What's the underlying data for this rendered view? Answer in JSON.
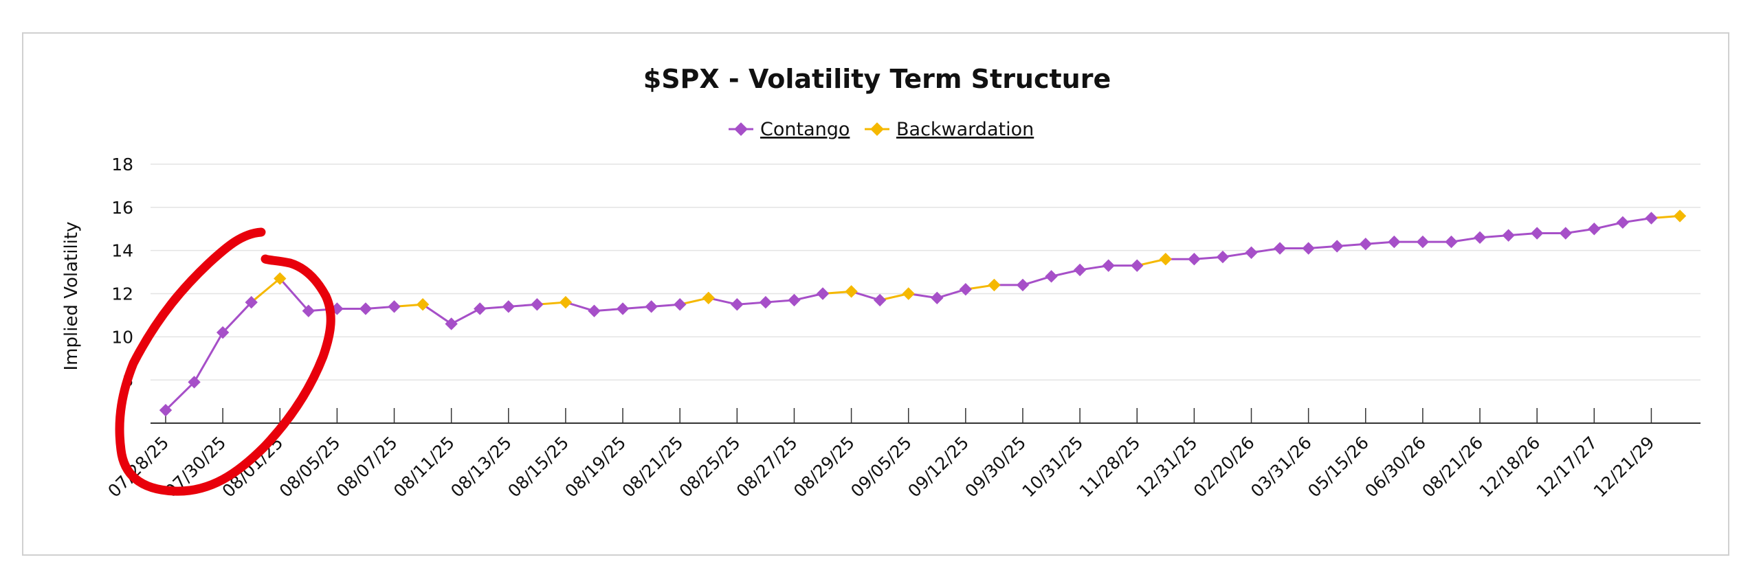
{
  "chart_data": {
    "type": "line",
    "title": "$SPX - Volatility Term Structure",
    "ylabel": "Implied Volatility",
    "xlabel": "",
    "ylim": [
      6,
      18
    ],
    "yticks": [
      8,
      10,
      12,
      14,
      16,
      18
    ],
    "grid": true,
    "legend_placement": "top-center",
    "x_tick_labels": [
      "07/28/25",
      "07/30/25",
      "08/01/25",
      "08/05/25",
      "08/07/25",
      "08/11/25",
      "08/13/25",
      "08/15/25",
      "08/19/25",
      "08/21/25",
      "08/25/25",
      "08/27/25",
      "08/29/25",
      "09/05/25",
      "09/12/25",
      "09/30/25",
      "10/31/25",
      "11/28/25",
      "12/31/25",
      "02/20/26",
      "03/31/26",
      "05/15/26",
      "06/30/26",
      "08/21/26",
      "12/18/26",
      "12/17/27",
      "12/21/29"
    ],
    "series": [
      {
        "name": "Contango",
        "color": "#a64fc8"
      },
      {
        "name": "Backwardation",
        "color": "#f5b800"
      }
    ],
    "points": [
      {
        "y": 6.6,
        "s": "Contango"
      },
      {
        "y": 7.9,
        "s": "Contango"
      },
      {
        "y": 10.2,
        "s": "Contango"
      },
      {
        "y": 11.6,
        "s": "Contango"
      },
      {
        "y": 12.7,
        "s": "Backwardation"
      },
      {
        "y": 11.2,
        "s": "Contango"
      },
      {
        "y": 11.3,
        "s": "Contango"
      },
      {
        "y": 11.3,
        "s": "Contango"
      },
      {
        "y": 11.4,
        "s": "Contango"
      },
      {
        "y": 11.5,
        "s": "Backwardation"
      },
      {
        "y": 10.6,
        "s": "Contango"
      },
      {
        "y": 11.3,
        "s": "Contango"
      },
      {
        "y": 11.4,
        "s": "Contango"
      },
      {
        "y": 11.5,
        "s": "Contango"
      },
      {
        "y": 11.6,
        "s": "Backwardation"
      },
      {
        "y": 11.2,
        "s": "Contango"
      },
      {
        "y": 11.3,
        "s": "Contango"
      },
      {
        "y": 11.4,
        "s": "Contango"
      },
      {
        "y": 11.5,
        "s": "Contango"
      },
      {
        "y": 11.8,
        "s": "Backwardation"
      },
      {
        "y": 11.5,
        "s": "Contango"
      },
      {
        "y": 11.6,
        "s": "Contango"
      },
      {
        "y": 11.7,
        "s": "Contango"
      },
      {
        "y": 12.0,
        "s": "Contango"
      },
      {
        "y": 12.1,
        "s": "Backwardation"
      },
      {
        "y": 11.7,
        "s": "Contango"
      },
      {
        "y": 12.0,
        "s": "Backwardation"
      },
      {
        "y": 11.8,
        "s": "Contango"
      },
      {
        "y": 12.2,
        "s": "Contango"
      },
      {
        "y": 12.4,
        "s": "Backwardation"
      },
      {
        "y": 12.4,
        "s": "Contango"
      },
      {
        "y": 12.8,
        "s": "Contango"
      },
      {
        "y": 13.1,
        "s": "Contango"
      },
      {
        "y": 13.3,
        "s": "Contango"
      },
      {
        "y": 13.3,
        "s": "Contango"
      },
      {
        "y": 13.6,
        "s": "Backwardation"
      },
      {
        "y": 13.6,
        "s": "Contango"
      },
      {
        "y": 13.7,
        "s": "Contango"
      },
      {
        "y": 13.9,
        "s": "Contango"
      },
      {
        "y": 14.1,
        "s": "Contango"
      },
      {
        "y": 14.1,
        "s": "Contango"
      },
      {
        "y": 14.2,
        "s": "Contango"
      },
      {
        "y": 14.3,
        "s": "Contango"
      },
      {
        "y": 14.4,
        "s": "Contango"
      },
      {
        "y": 14.4,
        "s": "Contango"
      },
      {
        "y": 14.4,
        "s": "Contango"
      },
      {
        "y": 14.6,
        "s": "Contango"
      },
      {
        "y": 14.7,
        "s": "Contango"
      },
      {
        "y": 14.8,
        "s": "Contango"
      },
      {
        "y": 14.8,
        "s": "Contango"
      },
      {
        "y": 15.0,
        "s": "Contango"
      },
      {
        "y": 15.3,
        "s": "Contango"
      },
      {
        "y": 15.5,
        "s": "Contango"
      },
      {
        "y": 15.6,
        "s": "Backwardation"
      }
    ],
    "annotation": {
      "type": "hand-drawn circle",
      "color": "#e8000b",
      "target": "first points 07/28/25–08/01/25"
    }
  }
}
